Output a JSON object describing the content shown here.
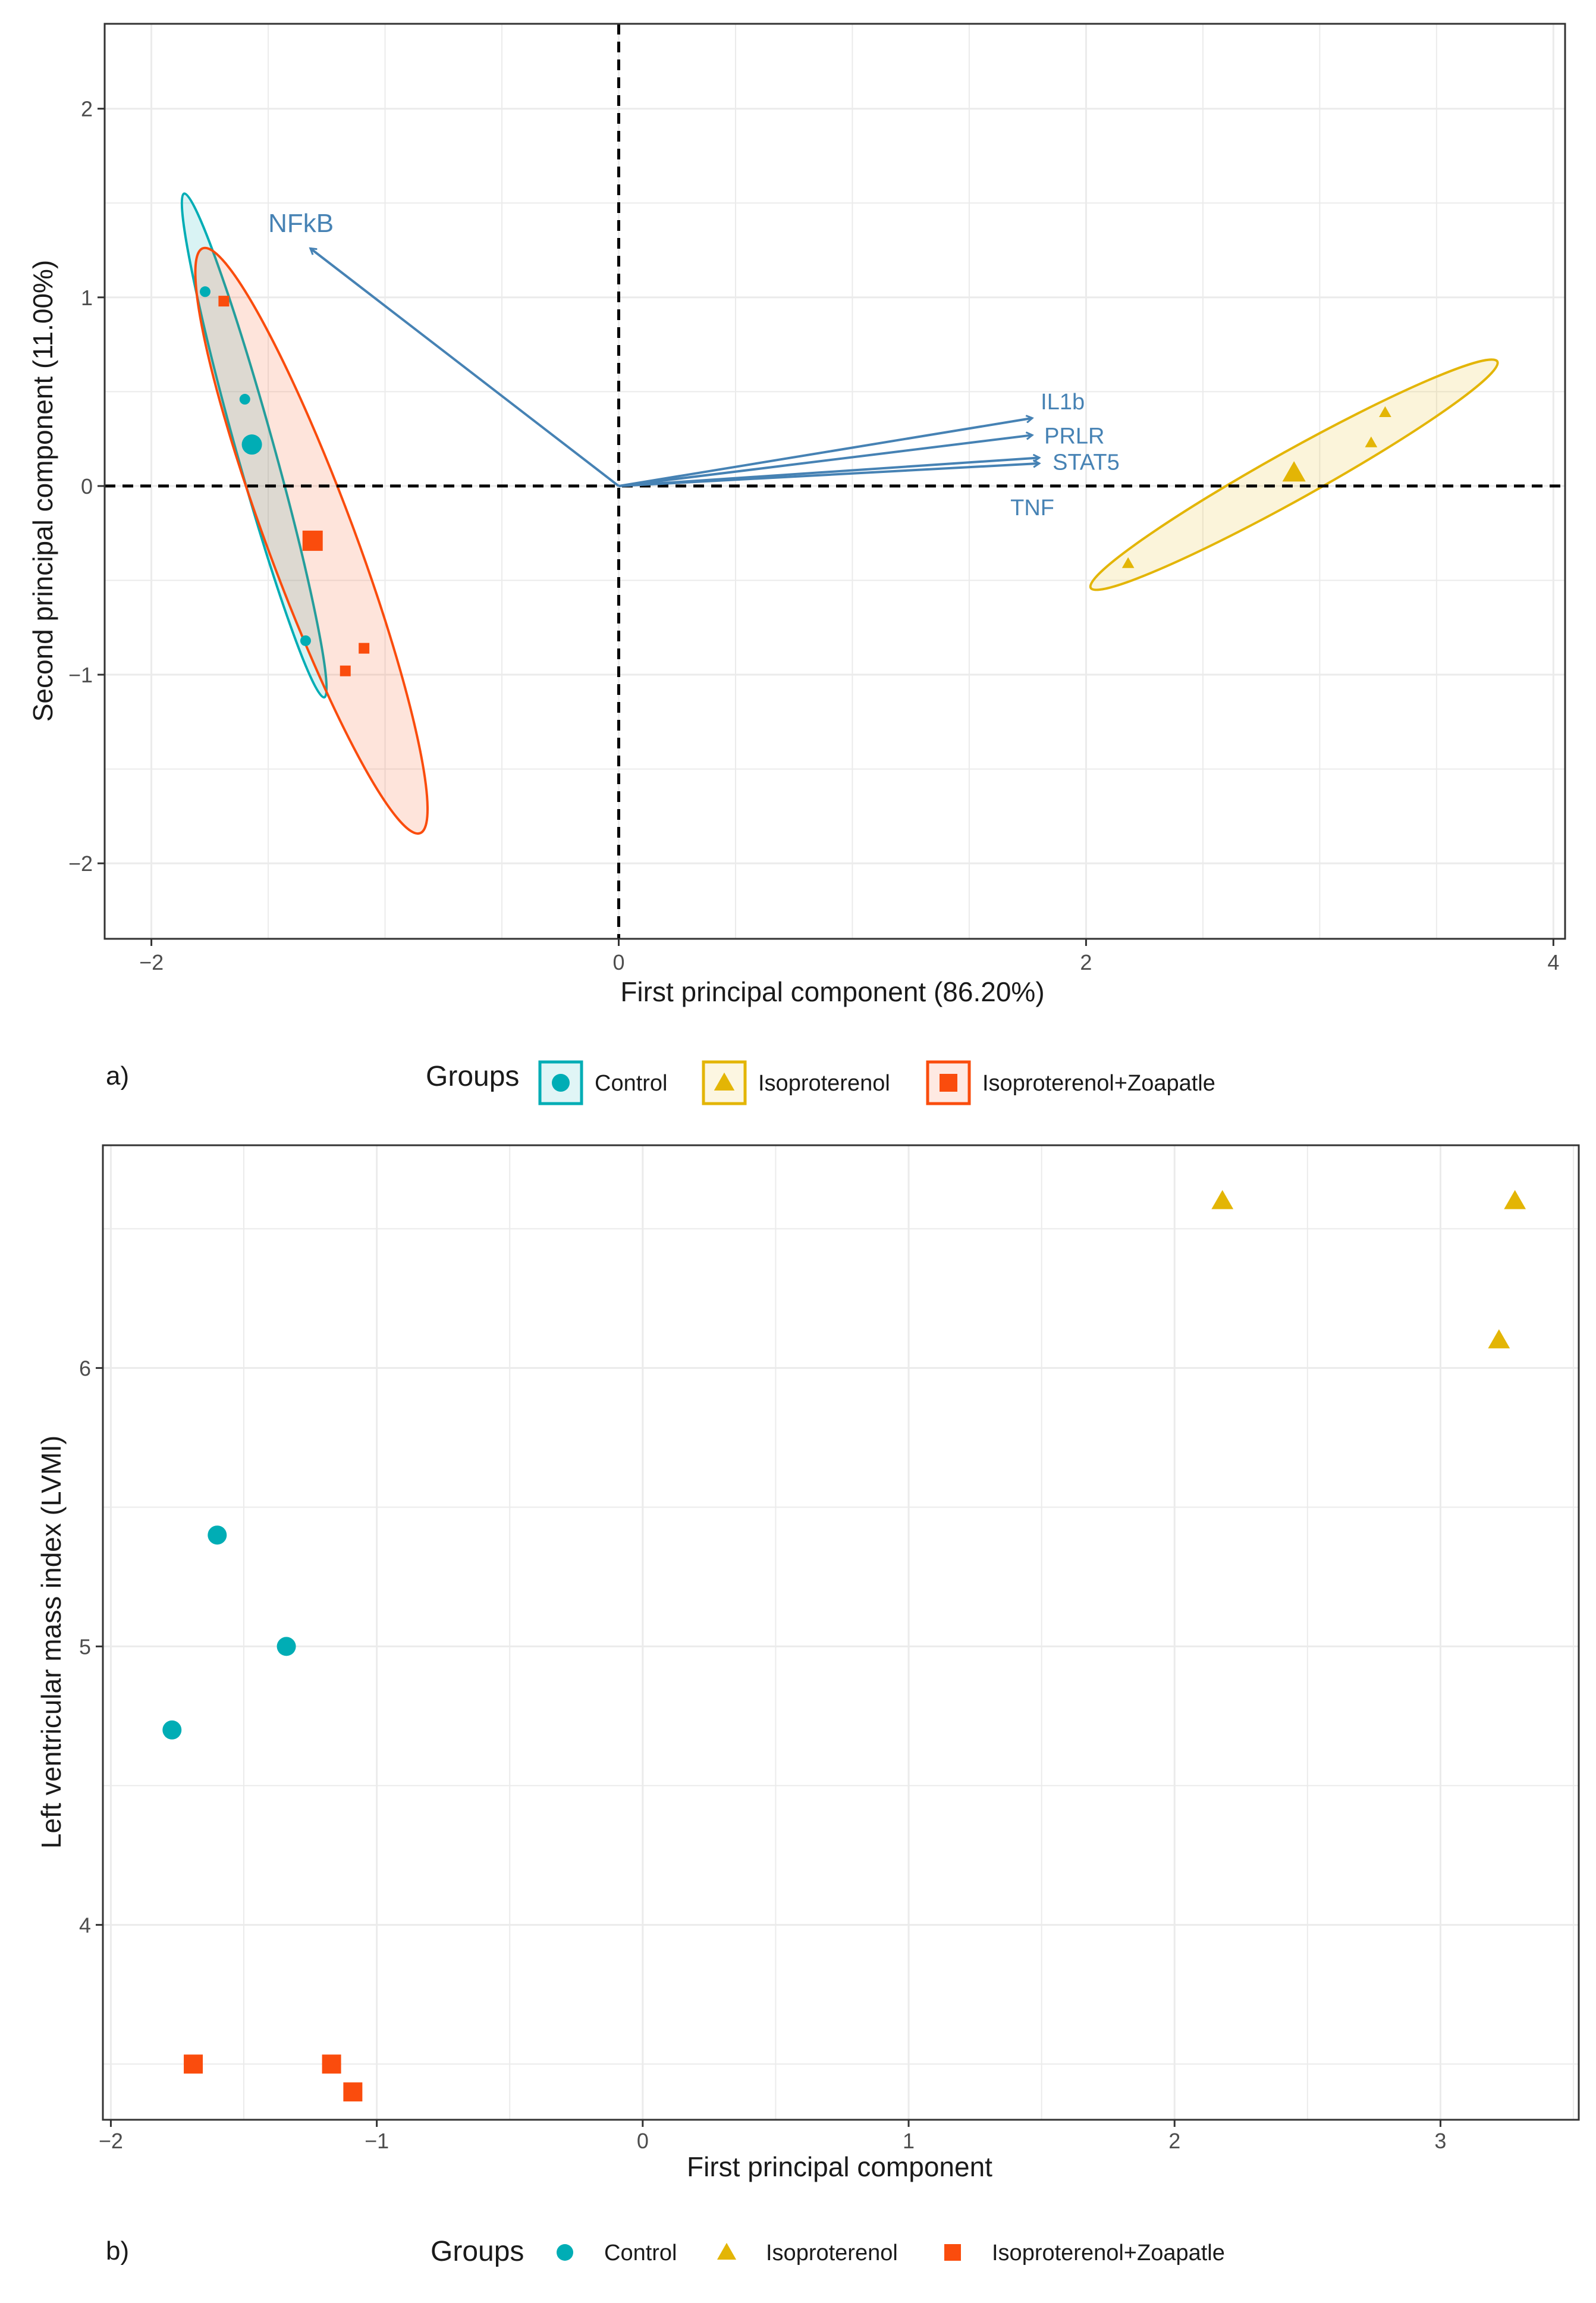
{
  "colors": {
    "control": "#00adb5",
    "isoproterenol": "#e3b505",
    "zoapatle": "#fa4c0d",
    "loading": "#4682b4",
    "grid": "#ebebeb",
    "panel_border": "#333333"
  },
  "chart_data": [
    {
      "type": "scatter",
      "subtype": "pca-biplot",
      "panel_label": "a)",
      "xlabel": "First principal component (86.20%)",
      "ylabel": "Second principal component (11.00%)",
      "xlim": [
        -2.2,
        4.05
      ],
      "ylim": [
        -2.4,
        2.45
      ],
      "xticks": [
        -2,
        0,
        2,
        4
      ],
      "xtick_labels": [
        "−2",
        "0",
        "2",
        "4"
      ],
      "yticks": [
        -2,
        -1,
        0,
        1,
        2
      ],
      "ytick_labels": [
        "−2",
        "−1",
        "0",
        "1",
        "2"
      ],
      "reference_lines": {
        "x": 0,
        "y": 0,
        "style": "dashed"
      },
      "groups": [
        {
          "name": "Control",
          "key": "control",
          "shape": "circle",
          "points": [
            [
              -1.77,
              1.03
            ],
            [
              -1.6,
              0.46
            ],
            [
              -1.34,
              -0.82
            ]
          ],
          "centroid": [
            -1.57,
            0.22
          ]
        },
        {
          "name": "Isoproterenol",
          "key": "isoproterenol",
          "shape": "triangle",
          "points": [
            [
              2.18,
              -0.41
            ],
            [
              3.22,
              0.23
            ],
            [
              3.28,
              0.39
            ]
          ],
          "centroid": [
            2.89,
            0.07
          ]
        },
        {
          "name": "Isoproterenol+Zoapatle",
          "key": "zoapatle",
          "shape": "square",
          "points": [
            [
              -1.69,
              0.98
            ],
            [
              -1.17,
              -0.98
            ],
            [
              -1.09,
              -0.86
            ]
          ],
          "centroid": [
            -1.31,
            -0.29
          ]
        }
      ],
      "loadings": [
        {
          "name": "NFkB",
          "x": -1.32,
          "y": 1.26,
          "label_x": -1.36,
          "label_y": 1.39,
          "size": 44
        },
        {
          "name": "IL1b",
          "x": 1.77,
          "y": 0.36,
          "label_x": 1.9,
          "label_y": 0.45,
          "size": 38
        },
        {
          "name": "PRLR",
          "x": 1.77,
          "y": 0.27,
          "label_x": 1.95,
          "label_y": 0.27,
          "size": 38
        },
        {
          "name": "STAT5",
          "x": 1.8,
          "y": 0.15,
          "label_x": 2.0,
          "label_y": 0.13,
          "size": 38
        },
        {
          "name": "TNF",
          "x": 1.8,
          "y": 0.12,
          "label_x": 1.77,
          "label_y": -0.11,
          "size": 38
        }
      ],
      "ellipses": [
        {
          "key": "control",
          "endpoints": [
            [
              -1.86,
              1.55
            ],
            [
              -1.26,
              -1.12
            ]
          ],
          "half_width": 0.036
        },
        {
          "key": "zoapatle",
          "endpoints": [
            [
              -1.78,
              1.26
            ],
            [
              -0.85,
              -1.84
            ]
          ],
          "half_width": 0.07
        },
        {
          "key": "isoproterenol",
          "endpoints": [
            [
              2.02,
              -0.54
            ],
            [
              3.76,
              0.66
            ]
          ],
          "half_width": 0.052
        }
      ]
    },
    {
      "type": "scatter",
      "panel_label": "b)",
      "xlabel": "First principal component",
      "ylabel": "Left ventricular mass index (LVMI)",
      "xlim": [
        -2.03,
        3.52
      ],
      "ylim": [
        3.3,
        6.8
      ],
      "xticks": [
        -2,
        -1,
        0,
        1,
        2,
        3
      ],
      "xtick_labels": [
        "−2",
        "−1",
        "0",
        "1",
        "2",
        "3"
      ],
      "yticks": [
        4,
        5,
        6
      ],
      "ytick_labels": [
        "4",
        "5",
        "6"
      ],
      "groups": [
        {
          "name": "Control",
          "key": "control",
          "shape": "circle",
          "points": [
            [
              -1.77,
              4.7
            ],
            [
              -1.6,
              5.4
            ],
            [
              -1.34,
              5.0
            ]
          ]
        },
        {
          "name": "Isoproterenol",
          "key": "isoproterenol",
          "shape": "triangle",
          "points": [
            [
              2.18,
              6.6
            ],
            [
              3.28,
              6.6
            ],
            [
              3.22,
              6.1
            ]
          ]
        },
        {
          "name": "Isoproterenol+Zoapatle",
          "key": "zoapatle",
          "shape": "square",
          "points": [
            [
              -1.69,
              3.5
            ],
            [
              -1.17,
              3.5
            ],
            [
              -1.09,
              3.4
            ]
          ]
        }
      ]
    }
  ],
  "legends": [
    {
      "title": "Groups",
      "items": [
        {
          "label": "Control",
          "key": "control",
          "shape": "circle"
        },
        {
          "label": "Isoproterenol",
          "key": "isoproterenol",
          "shape": "triangle"
        },
        {
          "label": "Isoproterenol+Zoapatle",
          "key": "zoapatle",
          "shape": "square"
        }
      ]
    },
    {
      "title": "Groups",
      "items": [
        {
          "label": "Control",
          "key": "control",
          "shape": "circle"
        },
        {
          "label": "Isoproterenol",
          "key": "isoproterenol",
          "shape": "triangle"
        },
        {
          "label": "Isoproterenol+Zoapatle",
          "key": "zoapatle",
          "shape": "square"
        }
      ]
    }
  ]
}
